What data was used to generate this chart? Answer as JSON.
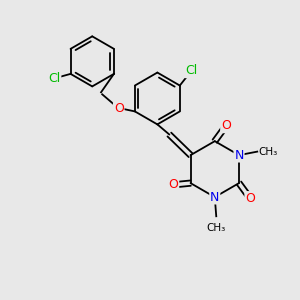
{
  "background_color": "#e8e8e8",
  "atom_colors": {
    "Cl": "#00bb00",
    "O": "#ff0000",
    "N": "#0000ee",
    "C": "#000000"
  },
  "lw": 1.3
}
